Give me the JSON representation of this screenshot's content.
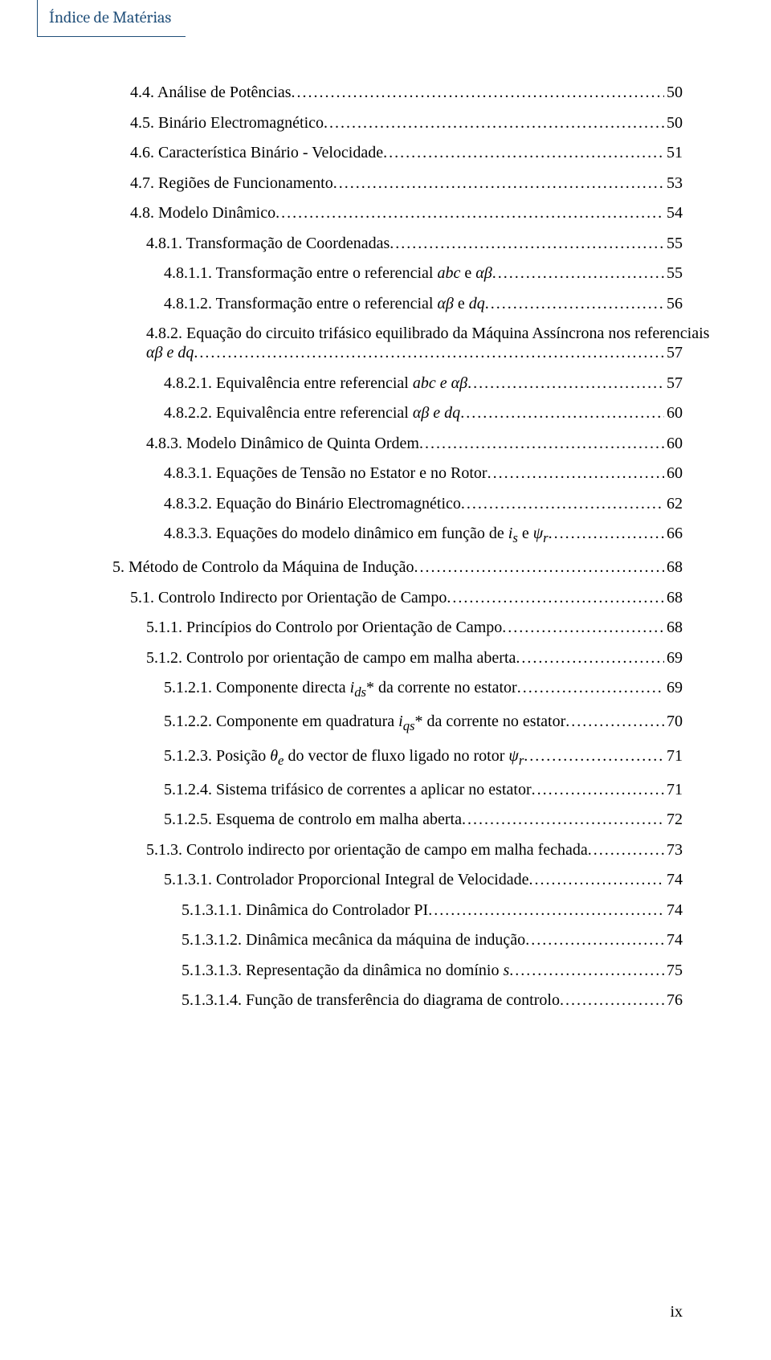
{
  "header": {
    "label": "Índice de Matérias",
    "border_color": "#1f4e79",
    "text_color": "#1f4e79",
    "fontsize": 20
  },
  "footer": {
    "page_number": "ix",
    "fontsize": 20
  },
  "toc": {
    "fontsize": 20,
    "text_color": "#000000",
    "entries": [
      {
        "indent": 1,
        "title": "4.4. Análise de Potências",
        "page": "50"
      },
      {
        "indent": 1,
        "title": "4.5. Binário Electromagnético",
        "page": "50"
      },
      {
        "indent": 1,
        "title": "4.6. Característica Binário - Velocidade",
        "page": "51"
      },
      {
        "indent": 1,
        "title": "4.7. Regiões de Funcionamento",
        "page": "53"
      },
      {
        "indent": 1,
        "title": "4.8. Modelo Dinâmico",
        "page": "54"
      },
      {
        "indent": 2,
        "title": "4.8.1. Transformação de Coordenadas",
        "page": "55"
      },
      {
        "indent": 3,
        "title_html": "4.8.1.1. Transformação entre o referencial <span class=\"italic\">abc</span> e <span class=\"italic\">αβ</span>",
        "page": "55"
      },
      {
        "indent": 3,
        "title_html": "4.8.1.2. Transformação entre o referencial <span class=\"italic\">αβ</span>  e <span class=\"italic\">dq</span>",
        "page": "56"
      },
      {
        "indent": 2,
        "title_html": "4.8.2. Equação do circuito trifásico equilibrado da Máquina Assíncrona nos referenciais",
        "wrap": true
      },
      {
        "indent": 2,
        "title_html": "<span class=\"italic\">αβ e dq</span>",
        "page": "57"
      },
      {
        "indent": 3,
        "title_html": "4.8.2.1. Equivalência entre referencial <span class=\"italic\">abc e αβ</span>",
        "page": "57"
      },
      {
        "indent": 3,
        "title_html": "4.8.2.2. Equivalência entre referencial <span class=\"italic\">αβ e dq</span>",
        "page": "60"
      },
      {
        "indent": 2,
        "title": "4.8.3. Modelo Dinâmico de Quinta Ordem",
        "page": "60"
      },
      {
        "indent": 3,
        "title": "4.8.3.1. Equações de Tensão no Estator e no Rotor",
        "page": "60"
      },
      {
        "indent": 3,
        "title": "4.8.3.2. Equação do Binário Electromagnético",
        "page": "62"
      },
      {
        "indent": 3,
        "title_html": "4.8.3.3. Equações do modelo dinâmico em função de <span class=\"italic\">i<sub>s</sub></span> e <span class=\"italic\">ψ<sub>r</sub></span>",
        "page": "66"
      },
      {
        "indent": 0,
        "title": "5. Método de Controlo da Máquina de Indução",
        "page": "68"
      },
      {
        "indent": 1,
        "title": "5.1. Controlo Indirecto por Orientação de Campo",
        "page": "68"
      },
      {
        "indent": 2,
        "title": "5.1.1. Princípios do Controlo por Orientação de Campo",
        "page": "68"
      },
      {
        "indent": 2,
        "title": "5.1.2. Controlo por orientação de campo em malha aberta",
        "page": "69"
      },
      {
        "indent": 3,
        "title_html": "5.1.2.1. Componente directa <span class=\"italic\">i<sub>ds</sub></span>* da corrente no estator",
        "page": "69"
      },
      {
        "indent": 3,
        "title_html": "5.1.2.2. Componente em quadratura <span class=\"italic\">i<sub>qs</sub></span>* da corrente no estator",
        "page": "70"
      },
      {
        "indent": 3,
        "title_html": "5.1.2.3. Posição <span class=\"italic\">θ<sub>e</sub></span> do vector de fluxo ligado no rotor <span class=\"italic\">ψ<sub>r</sub></span>",
        "page": "71"
      },
      {
        "indent": 3,
        "title": "5.1.2.4. Sistema trifásico de correntes a aplicar no estator",
        "page": "71"
      },
      {
        "indent": 3,
        "title": "5.1.2.5. Esquema de controlo em malha aberta",
        "page": "72"
      },
      {
        "indent": 2,
        "title": "5.1.3. Controlo indirecto por orientação de campo em malha fechada",
        "page": "73"
      },
      {
        "indent": 3,
        "title": "5.1.3.1. Controlador Proporcional Integral de Velocidade",
        "page": "74"
      },
      {
        "indent": 4,
        "title": "5.1.3.1.1. Dinâmica do Controlador PI",
        "page": "74"
      },
      {
        "indent": 4,
        "title": "5.1.3.1.2. Dinâmica mecânica da máquina de indução",
        "page": "74"
      },
      {
        "indent": 4,
        "title_html": "5.1.3.1.3. Representação da dinâmica no domínio <span class=\"italic\">s</span>",
        "page": "75"
      },
      {
        "indent": 4,
        "title": "5.1.3.1.4. Função de transferência do diagrama de controlo",
        "page": "76"
      }
    ]
  }
}
